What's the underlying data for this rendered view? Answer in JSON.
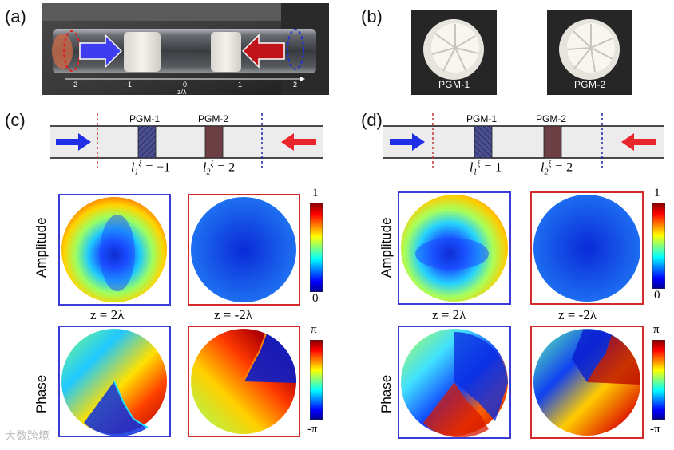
{
  "panels": {
    "a": "(a)",
    "b": "(b)",
    "c": "(c)",
    "d": "(d)"
  },
  "axis_a": {
    "ticks": [
      "-2",
      "-1",
      "0",
      "1",
      "2"
    ],
    "label": "z/λ"
  },
  "photos_b": [
    "PGM-1",
    "PGM-2"
  ],
  "schematic_c": {
    "pgm1": "PGM-1",
    "pgm2": "PGM-2",
    "l1_value": "−1",
    "l2_value": "2"
  },
  "schematic_d": {
    "pgm1": "PGM-1",
    "pgm2": "PGM-2",
    "l1_value": "1",
    "l2_value": "2"
  },
  "row_labels": {
    "amplitude": "Amplitude",
    "phase": "Phase"
  },
  "z_labels": {
    "plus": "z = 2λ",
    "minus": "z = -2λ"
  },
  "colorbar_amp": {
    "max": "1",
    "min": "0"
  },
  "colorbar_phase": {
    "max": "π",
    "min": "-π"
  },
  "colors": {
    "blue_box": "#3b3bd6",
    "red_box": "#d42a2a",
    "arrow_blue": "#1f2fe6",
    "arrow_red": "#e8262b"
  },
  "watermark": "大数跨境"
}
